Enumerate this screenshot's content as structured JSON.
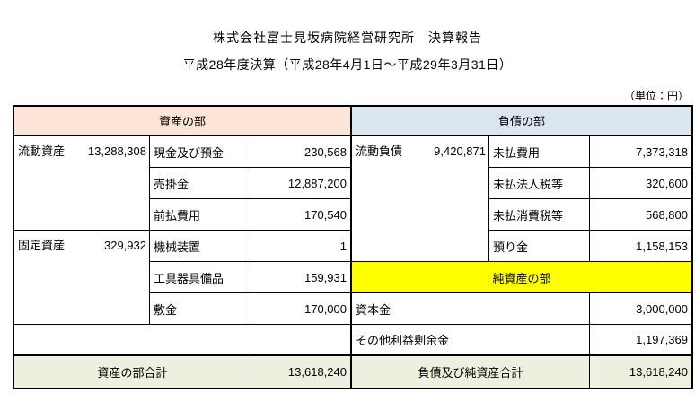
{
  "page": {
    "title": "株式会社富士見坂病院経営研究所　決算報告",
    "subtitle": "平成28年度決算（平成28年4月1日～平成29年3月31日）",
    "unit_note": "（単位：円）"
  },
  "colors": {
    "assets_header_bg": "#FCE4D6",
    "liabilities_header_bg": "#DCE6F1",
    "net_assets_header_bg": "#FFFF00",
    "total_row_bg": "#EBF1DE",
    "border": "#000000"
  },
  "balance_sheet": {
    "assets": {
      "section_title": "資産の部",
      "groups": [
        {
          "label": "流動資産",
          "amount": "13,288,308",
          "items": [
            {
              "label": "現金及び預金",
              "amount": "230,568"
            },
            {
              "label": "売掛金",
              "amount": "12,887,200"
            },
            {
              "label": "前払費用",
              "amount": "170,540"
            }
          ]
        },
        {
          "label": "固定資産",
          "amount": "329,932",
          "items": [
            {
              "label": "機械装置",
              "amount": "1"
            },
            {
              "label": "工具器具備品",
              "amount": "159,931"
            },
            {
              "label": "敷金",
              "amount": "170,000"
            }
          ]
        }
      ],
      "total_label": "資産の部合計",
      "total_amount": "13,618,240"
    },
    "liabilities": {
      "section_title": "負債の部",
      "groups": [
        {
          "label": "流動負債",
          "amount": "9,420,871",
          "items": [
            {
              "label": "未払費用",
              "amount": "7,373,318"
            },
            {
              "label": "未払法人税等",
              "amount": "320,600"
            },
            {
              "label": "未払消費税等",
              "amount": "568,800"
            },
            {
              "label": "預り金",
              "amount": "1,158,153"
            }
          ]
        }
      ]
    },
    "net_assets": {
      "section_title": "純資産の部",
      "items": [
        {
          "label": "資本金",
          "amount": "3,000,000"
        },
        {
          "label": "その他利益剰余金",
          "amount": "1,197,369"
        }
      ]
    },
    "totals_right": {
      "label": "負債及び純資産合計",
      "amount": "13,618,240"
    }
  }
}
